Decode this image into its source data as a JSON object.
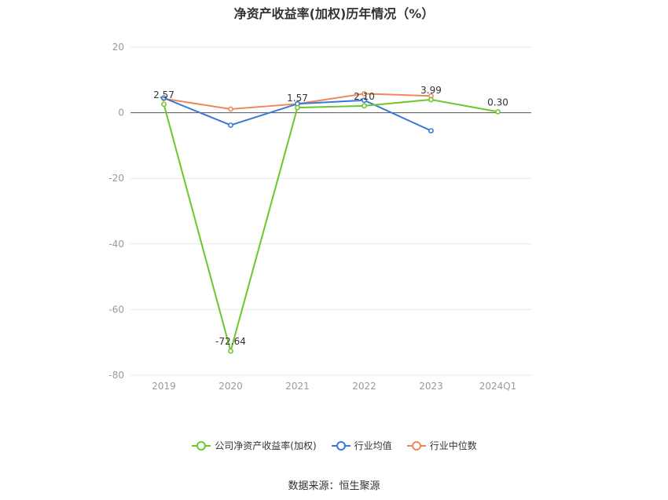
{
  "chart_data": {
    "type": "line",
    "title": "净资产收益率(加权)历年情况（%）",
    "categories": [
      "2019",
      "2020",
      "2021",
      "2022",
      "2023",
      "2024Q1"
    ],
    "ylim": [
      -80,
      20
    ],
    "yticks": [
      20,
      0,
      -20,
      -40,
      -60,
      -80
    ],
    "grid": true,
    "legend_position": "bottom",
    "series": [
      {
        "name": "公司净资产收益率(加权)",
        "color": "#6ac72c",
        "values": [
          2.57,
          -72.64,
          1.57,
          2.1,
          3.99,
          0.3
        ],
        "labels": [
          "2.57",
          "-72.64",
          "1.57",
          "2.10",
          "3.99",
          "0.30"
        ]
      },
      {
        "name": "行业均值",
        "color": "#3a78d8",
        "values": [
          4.5,
          -3.8,
          2.7,
          3.8,
          -5.5,
          null
        ]
      },
      {
        "name": "行业中位数",
        "color": "#f0875a",
        "values": [
          4.3,
          1.1,
          2.7,
          5.8,
          5.1,
          null
        ]
      }
    ]
  },
  "source": "数据来源：恒生聚源"
}
